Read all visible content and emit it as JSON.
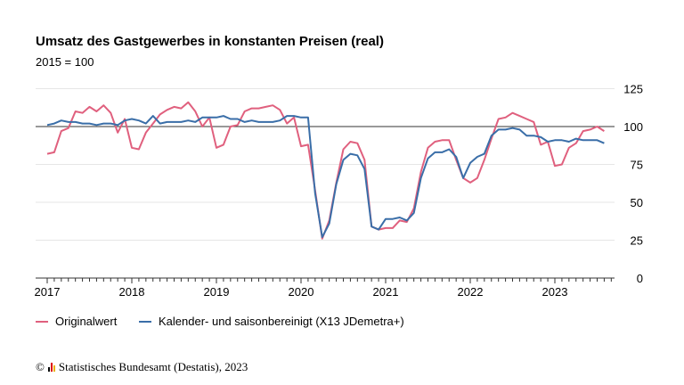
{
  "chart_data": {
    "type": "line",
    "title": "Umsatz des Gastgewerbes in konstanten Preisen (real)",
    "subtitle": "2015 = 100",
    "x_start": "2017-01",
    "x_end": "2023-08",
    "frequency": "monthly",
    "xticks": [
      "2017",
      "2018",
      "2019",
      "2020",
      "2021",
      "2022",
      "2023"
    ],
    "yticks": [
      0,
      25,
      50,
      75,
      100,
      125
    ],
    "ylim": [
      0,
      125
    ],
    "reference_line": 100,
    "grid": "horizontal",
    "legend_placement": "bottom-left",
    "series": [
      {
        "name": "Originalwert",
        "color": "#e0607e",
        "values": [
          82,
          83,
          97,
          99,
          110,
          109,
          113,
          110,
          114,
          109,
          96,
          105,
          86,
          85,
          96,
          102,
          108,
          111,
          113,
          112,
          116,
          110,
          100,
          106,
          86,
          88,
          100,
          101,
          110,
          112,
          112,
          113,
          114,
          111,
          102,
          106,
          87,
          88,
          58,
          26,
          38,
          63,
          85,
          90,
          89,
          78,
          34,
          32,
          33,
          33,
          38,
          37,
          46,
          70,
          86,
          90,
          91,
          91,
          78,
          66,
          63,
          66,
          78,
          92,
          105,
          106,
          109,
          107,
          105,
          103,
          88,
          90,
          74,
          75,
          86,
          89,
          97,
          98,
          100,
          97
        ]
      },
      {
        "name": "Kalender- und saisonbereinigt (X13 JDemetra+)",
        "color": "#3a6ea8",
        "values": [
          101,
          102,
          104,
          103,
          103,
          102,
          102,
          101,
          102,
          102,
          101,
          104,
          105,
          104,
          102,
          107,
          102,
          103,
          103,
          103,
          104,
          103,
          106,
          106,
          106,
          107,
          105,
          105,
          103,
          104,
          103,
          103,
          103,
          104,
          107,
          107,
          106,
          106,
          56,
          27,
          36,
          62,
          78,
          82,
          81,
          72,
          34,
          32,
          39,
          39,
          40,
          38,
          43,
          66,
          79,
          83,
          83,
          85,
          80,
          66,
          76,
          80,
          82,
          94,
          98,
          98,
          99,
          98,
          94,
          94,
          93,
          90,
          91,
          91,
          90,
          92,
          91,
          91,
          91,
          89
        ]
      }
    ]
  },
  "footer": {
    "text": "Statistisches Bundesamt (Destatis), 2023",
    "copyright": "©"
  }
}
